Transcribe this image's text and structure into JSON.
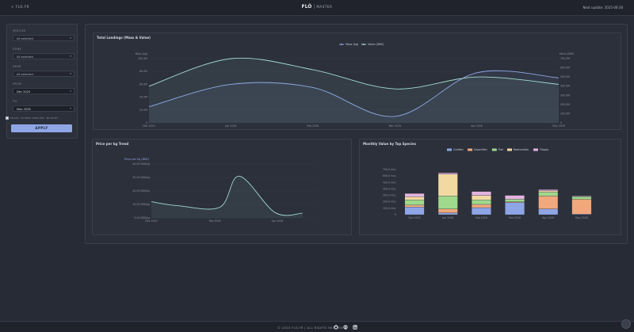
{
  "header": {
    "back_label": "< FLO.FR",
    "brand_main": "FLÓ",
    "brand_sub": "MASTER",
    "last_update": "Next update: 2025-06-28"
  },
  "filters": {
    "species_label": "SPECIES",
    "species_value": "All selected",
    "zone_label": "ZONE",
    "zone_value": "All selected",
    "gear_label": "GEAR",
    "gear_value": "All selected",
    "from_label": "FROM",
    "from_value": "Dec 2025",
    "to_label": "TO",
    "to_value": "May 2026",
    "checkbox_label": "SHOW \"OTHER SPECIES\" BUCKET",
    "apply_label": "APPLY"
  },
  "colors": {
    "mass": "#8fa6e6",
    "value": "#9fd8cc",
    "accent": "#8fa6e6"
  },
  "icons": [
    "github-icon",
    "linkedin-icon",
    "chat-bubble-icon"
  ],
  "footer": {
    "copyright": "© 2025 FLÓ.FR | ALL RIGHTS RESERVED"
  },
  "chart_data": [
    {
      "type": "line",
      "title": "Total Landings (Mass & Value)",
      "x": [
        "Dec 2025",
        "Jan 2026",
        "Feb 2026",
        "Mar 2026",
        "Apr 2026",
        "May 2026"
      ],
      "series": [
        {
          "name": "Mass (kg)",
          "axis": "left",
          "values": [
            25,
            60,
            55,
            10,
            78,
            70
          ]
        },
        {
          "name": "Value (DKK)",
          "axis": "right",
          "values": [
            400,
            700,
            580,
            370,
            500,
            420
          ]
        }
      ],
      "ylabel_left": "Mass (kg)",
      "ylabel_right": "Value (DKK)",
      "ylim_left": [
        0,
        100
      ],
      "ylim_right": [
        0,
        700
      ],
      "yticks_left": [
        "0",
        "20.0M",
        "40.0M",
        "60.0M",
        "80.0M",
        "100.0M"
      ],
      "yticks_right": [
        "0",
        "100.0M",
        "200.0M",
        "300.0M",
        "400.0M",
        "500.0M",
        "600.0M",
        "700.0M"
      ],
      "legend": "top-center"
    },
    {
      "type": "line",
      "title": "Price per kg Trend",
      "x": [
        "Dec 2025",
        "Feb 2026",
        "Apr 2026"
      ],
      "series": [
        {
          "name": "Price per kg (DKK)",
          "values": [
            [
              0,
              12
            ],
            [
              0.5,
              9
            ],
            [
              1.25,
              8
            ],
            [
              1.6,
              31
            ],
            [
              2.25,
              4
            ],
            [
              2.75,
              3.5
            ]
          ]
        }
      ],
      "ylim": [
        0,
        40
      ],
      "yticks": [
        "0,00 DKK/kg",
        "10,00 DKK/kg",
        "20,00 DKK/kg",
        "30,00 DKK/kg",
        "40,00 DKK/kg"
      ],
      "legend": "top-left"
    },
    {
      "type": "bar",
      "title": "Monthly Value by Top Species",
      "categories": [
        "Dec 2025",
        "Jan 2026",
        "Feb 2026",
        "Mar 2026",
        "Apr 2026",
        "May 2026"
      ],
      "stacked": true,
      "series": [
        {
          "name": "Codfish",
          "color": "#8fa6e6",
          "values": [
            120,
            30,
            110,
            190,
            90,
            10
          ]
        },
        {
          "name": "Swordfish",
          "color": "#f0a87c",
          "values": [
            30,
            60,
            50,
            10,
            200,
            230
          ]
        },
        {
          "name": "Fish",
          "color": "#9fd98b",
          "values": [
            80,
            200,
            70,
            40,
            60,
            40
          ]
        },
        {
          "name": "Redmullets",
          "color": "#f2d9a2",
          "values": [
            50,
            340,
            70,
            0,
            20,
            0
          ]
        },
        {
          "name": "Tilapia",
          "color": "#e4b3e0",
          "values": [
            50,
            20,
            60,
            60,
            20,
            10
          ]
        }
      ],
      "ylim": [
        0,
        700
      ],
      "yticks": [
        "0",
        "100,0 mio.",
        "200,0 mio.",
        "300,0 mio.",
        "400,0 mio.",
        "500,0 mio.",
        "600,0 mio.",
        "700,0 mio."
      ],
      "legend": "top-center"
    }
  ]
}
